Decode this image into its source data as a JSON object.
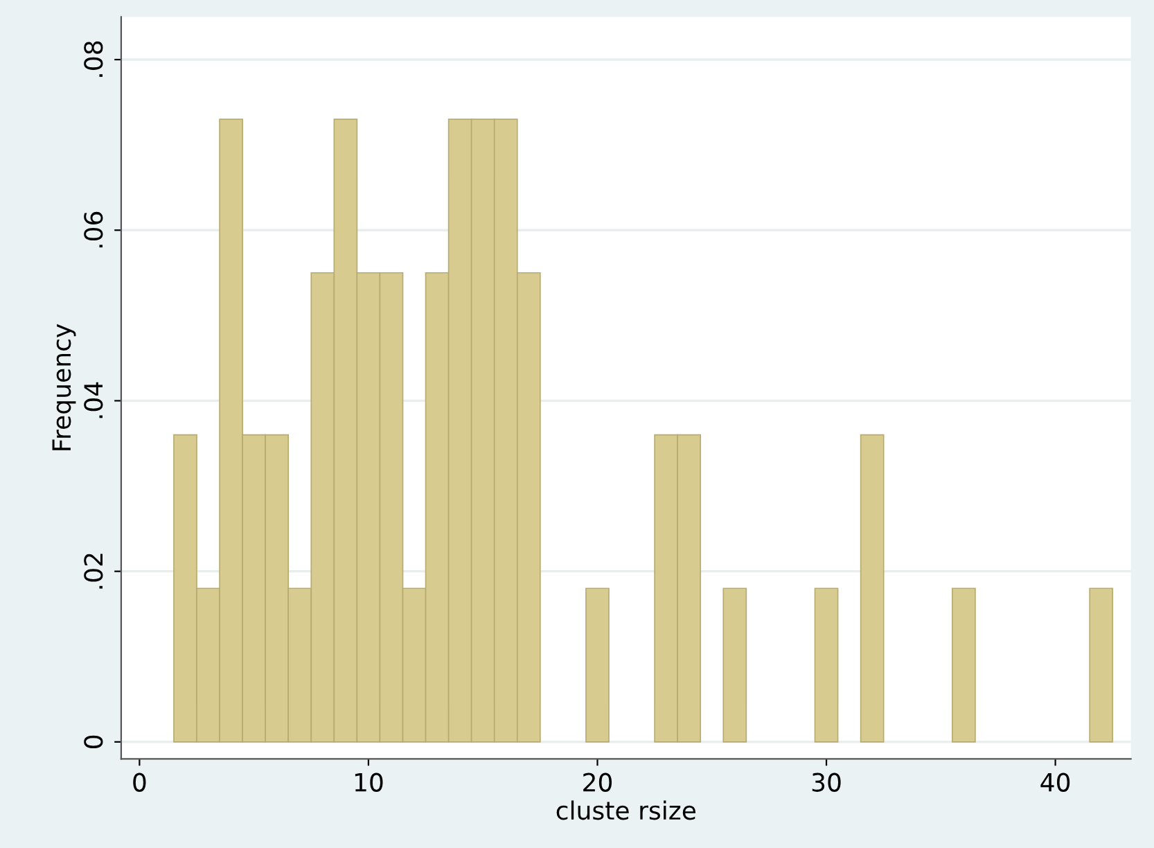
{
  "chart_data": {
    "type": "histogram",
    "xlabel": "cluste rsize",
    "ylabel": "Frequency",
    "bins": [
      1.5,
      2.5,
      3.5,
      4.5,
      5.5,
      6.5,
      7.5,
      8.5,
      9.5,
      10.5,
      11.5,
      12.5,
      13.5,
      14.5,
      15.5,
      16.5,
      17.5,
      18.5,
      19.5,
      20.5,
      21.5,
      22.5,
      23.5,
      24.5,
      25.5,
      26.5,
      27.5,
      28.5,
      29.5,
      30.5,
      31.5,
      32.5,
      33.5,
      34.5,
      35.5,
      36.5,
      37.5,
      38.5,
      39.5,
      40.5,
      41.5,
      42.5
    ],
    "values": [
      0.036,
      0.018,
      0.073,
      0.036,
      0.036,
      0.018,
      0.055,
      0.073,
      0.055,
      0.055,
      0.018,
      0.055,
      0.073,
      0.073,
      0.073,
      0.055,
      0,
      0,
      0.018,
      0,
      0,
      0.036,
      0.036,
      0,
      0.018,
      0,
      0,
      0,
      0.018,
      0,
      0.036,
      0,
      0,
      0,
      0.018,
      0,
      0,
      0,
      0,
      0,
      0.018
    ],
    "color": "#d8cb8f",
    "xlim": [
      -0.8,
      43.3
    ],
    "xticks": [
      0,
      10,
      20,
      30,
      40
    ],
    "ylim": [
      -0.002,
      0.085
    ],
    "yticks": [
      {
        "value": 0,
        "label": "0"
      },
      {
        "value": 0.02,
        "label": ".02"
      },
      {
        "value": 0.04,
        "label": ".04"
      },
      {
        "value": 0.06,
        "label": ".06"
      },
      {
        "value": 0.08,
        "label": ".08"
      }
    ],
    "grid": "y"
  }
}
